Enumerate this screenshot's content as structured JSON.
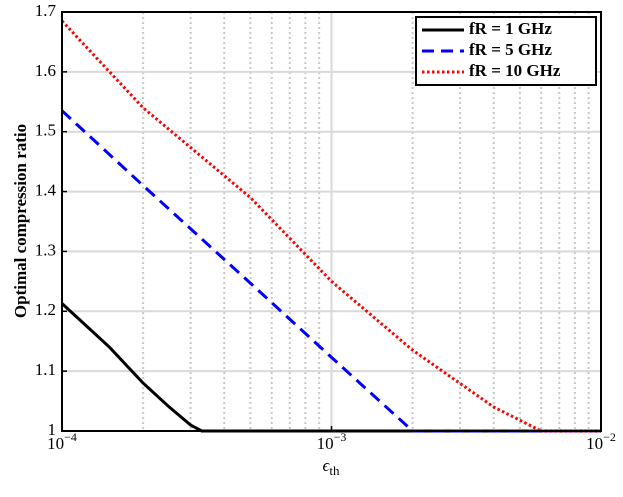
{
  "chart_data": {
    "type": "line",
    "y_label": "Optimal compression ratio",
    "x_label": "ϵ",
    "x_label_subscript": "th",
    "log_x": true,
    "grid": true,
    "minor_grid": true,
    "legend": "upper right",
    "xlim": [
      0.0001,
      0.01
    ],
    "xticks": [
      {
        "value": 0.0001,
        "label": "10",
        "label_exponent": "−4"
      },
      {
        "value": 0.001,
        "label": "10",
        "label_exponent": "−3"
      },
      {
        "value": 0.01,
        "label": "10",
        "label_exponent": "−2"
      }
    ],
    "xminorticks": [
      0.0002,
      0.0003,
      0.0004,
      0.0005,
      0.0006,
      0.0007,
      0.0008,
      0.0009,
      0.002,
      0.003,
      0.004,
      0.005,
      0.006,
      0.007,
      0.008,
      0.009
    ],
    "ylim": [
      1,
      1.7
    ],
    "yticks": [
      1,
      1.1,
      1.2,
      1.3,
      1.4,
      1.5,
      1.6,
      1.7
    ],
    "series": [
      {
        "name": "fR = 1 GHz",
        "color": "#000000",
        "dash": "solid",
        "x": [
          0.0001,
          0.00015,
          0.0002,
          0.00025,
          0.0003,
          0.00033,
          0.01
        ],
        "values": [
          1.213,
          1.14,
          1.08,
          1.04,
          1.01,
          1.0,
          1.0
        ]
      },
      {
        "name": "fR = 5 GHz",
        "color": "#0000ff",
        "dash": "dashed",
        "x": [
          0.0001,
          0.0002,
          0.0005,
          0.001,
          0.002,
          0.01
        ],
        "values": [
          1.535,
          1.41,
          1.247,
          1.123,
          1.0,
          1.0
        ]
      },
      {
        "name": "fR = 10 GHz",
        "color": "#ff0000",
        "dash": "dotted",
        "x": [
          0.0001,
          0.0002,
          0.0005,
          0.001,
          0.002,
          0.004,
          0.006,
          0.01
        ],
        "values": [
          1.685,
          1.54,
          1.39,
          1.25,
          1.135,
          1.04,
          1.0,
          1.0
        ]
      }
    ]
  }
}
